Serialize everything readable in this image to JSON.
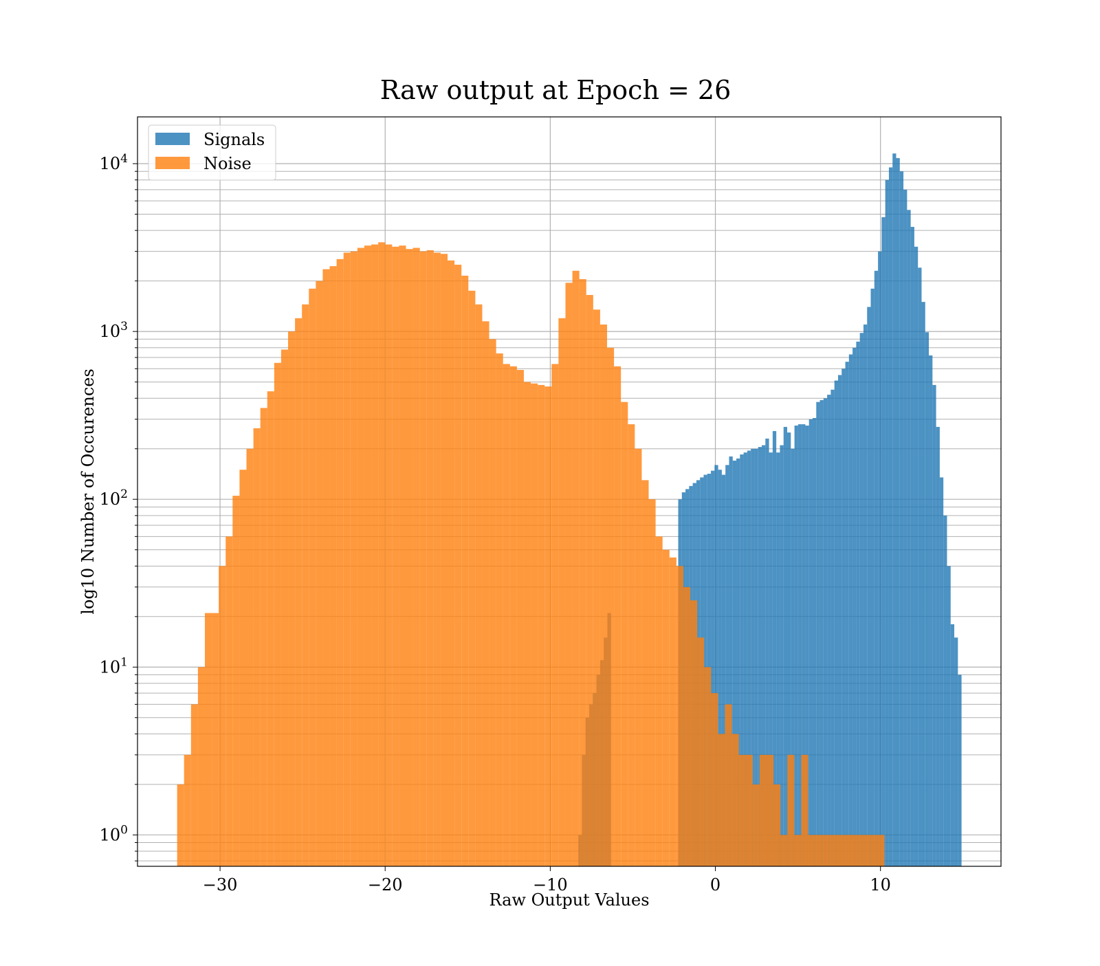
{
  "chart_data": {
    "type": "bar",
    "subtype": "overlapping-histogram",
    "title": "Raw output at Epoch = 26",
    "xlabel": "Raw Output Values",
    "ylabel": "log10 Number of Occurences",
    "yscale": "log",
    "xlim": [
      -35,
      17.3
    ],
    "ylim": [
      0.65,
      19000
    ],
    "xticks": [
      -30,
      -20,
      -10,
      0,
      10
    ],
    "xtick_labels": [
      "−30",
      "−20",
      "−10",
      "0",
      "10"
    ],
    "yticks": [
      1,
      10,
      100,
      1000,
      10000
    ],
    "ytick_bases": [
      "10",
      "10",
      "10",
      "10",
      "10"
    ],
    "ytick_exponents": [
      "0",
      "1",
      "2",
      "3",
      "4"
    ],
    "grid": true,
    "legend": {
      "location": "upper-left",
      "entries": [
        "Signals",
        "Noise"
      ]
    },
    "series": [
      {
        "name": "Signals",
        "color": "#1f77b4",
        "opacity": 0.8,
        "bins_x0": -2.25,
        "bin_width": 0.22,
        "counts": [
          100,
          110,
          115,
          120,
          125,
          130,
          135,
          140,
          142,
          148,
          160,
          150,
          140,
          160,
          180,
          170,
          175,
          185,
          190,
          195,
          200,
          200,
          205,
          210,
          230,
          190,
          255,
          190,
          210,
          270,
          250,
          200,
          275,
          280,
          280,
          275,
          300,
          305,
          380,
          390,
          400,
          420,
          450,
          510,
          550,
          600,
          660,
          730,
          800,
          870,
          980,
          1100,
          1400,
          1800,
          2300,
          3000,
          4800,
          8000,
          9500,
          11500,
          10800,
          9000,
          7000,
          5300,
          4200,
          3200,
          2400,
          1500,
          990,
          720,
          480,
          270,
          135,
          80,
          40,
          18,
          15,
          9
        ],
        "low_x0": -8.3,
        "low_counts": [
          1,
          3,
          5,
          6,
          7,
          9,
          11,
          15,
          21
        ]
      },
      {
        "name": "Noise",
        "color": "#ff7f0e",
        "opacity": 0.8,
        "bins_x0": -32.6,
        "bin_width": 0.42,
        "counts": [
          2,
          3,
          6,
          10,
          21,
          21,
          40,
          60,
          105,
          150,
          200,
          265,
          350,
          440,
          650,
          780,
          1000,
          1200,
          1450,
          1800,
          2000,
          2350,
          2450,
          2700,
          2950,
          3000,
          3150,
          3250,
          3300,
          3400,
          3300,
          3200,
          3250,
          3100,
          3150,
          3000,
          3050,
          2950,
          2900,
          2650,
          2500,
          2150,
          1750,
          1450,
          1150,
          900,
          740,
          640,
          620,
          590,
          500,
          490,
          480,
          470,
          640,
          1200,
          1950,
          2300,
          2050,
          1650,
          1350,
          1100,
          800,
          620,
          380,
          280,
          200,
          130,
          100,
          60,
          50,
          45,
          40,
          30,
          25,
          15,
          10,
          7,
          4,
          6,
          4,
          3,
          3,
          2,
          3,
          3,
          2,
          1,
          3,
          1,
          3,
          1,
          1,
          1,
          1,
          1,
          1,
          1,
          1,
          1,
          1,
          1
        ]
      }
    ]
  }
}
